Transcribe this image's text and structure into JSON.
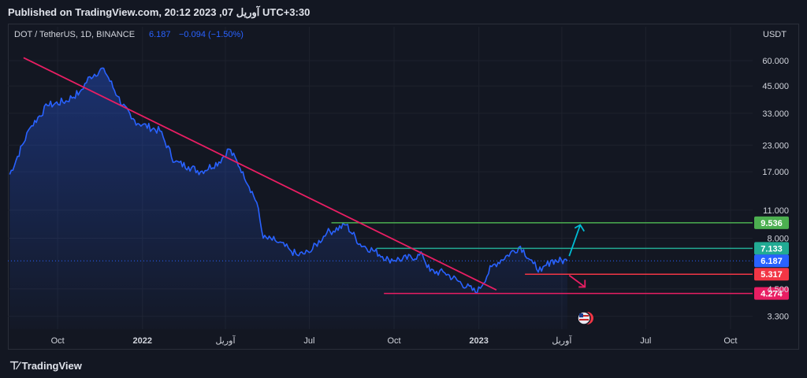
{
  "header": {
    "published": "Published on TradingView.com, 20:12 2023 ,07 آوریل UTC+3:30"
  },
  "footer": {
    "brand": "TradingView"
  },
  "chart_data": {
    "type": "line",
    "title": "DOT / TetherUS, 1D, BINANCE",
    "legend": {
      "last": "6.187",
      "change": "−0.094 (−1.50%)"
    },
    "currency": "USDT",
    "y_scale": "log",
    "y_ticks": [
      "60.000",
      "45.000",
      "33.000",
      "23.000",
      "17.000",
      "11.000",
      "8.000",
      "4.500",
      "3.300"
    ],
    "x_ticks": [
      "Oct",
      "2022",
      "آوریل",
      "Jul",
      "Oct",
      "2023",
      "آوریل",
      "Jul",
      "Oct"
    ],
    "x": [
      "2021-08-10",
      "2021-09-01",
      "2021-09-20",
      "2021-10-10",
      "2021-10-25",
      "2021-11-05",
      "2021-11-20",
      "2021-12-05",
      "2021-12-20",
      "2022-01-01",
      "2022-01-20",
      "2022-02-05",
      "2022-02-20",
      "2022-03-05",
      "2022-03-25",
      "2022-04-05",
      "2022-04-20",
      "2022-05-05",
      "2022-05-12",
      "2022-05-25",
      "2022-06-10",
      "2022-06-18",
      "2022-07-01",
      "2022-07-20",
      "2022-08-10",
      "2022-08-25",
      "2022-09-10",
      "2022-09-25",
      "2022-10-10",
      "2022-11-01",
      "2022-11-09",
      "2022-11-25",
      "2022-12-10",
      "2022-12-30",
      "2023-01-15",
      "2023-02-01",
      "2023-02-15",
      "2023-03-01",
      "2023-03-10",
      "2023-03-20",
      "2023-04-07"
    ],
    "series": [
      {
        "values": [
          16.5,
          28,
          36,
          38,
          42,
          50,
          55,
          40,
          31,
          29,
          27,
          19,
          18,
          17,
          19,
          22,
          17,
          12,
          8.0,
          7.8,
          7.0,
          6.6,
          6.8,
          8.5,
          9.3,
          7.5,
          6.9,
          6.3,
          6.3,
          6.6,
          5.5,
          5.4,
          4.9,
          4.3,
          5.8,
          6.6,
          7.3,
          6.0,
          5.5,
          6.2,
          6.187
        ]
      }
    ],
    "levels": [
      {
        "label": "9.536",
        "value": 9.536,
        "color": "#4caf50"
      },
      {
        "label": "7.133",
        "value": 7.133,
        "color": "#22ab94"
      },
      {
        "label": "6.187",
        "value": 6.187,
        "color": "#2962ff"
      },
      {
        "label": "5.317",
        "value": 5.317,
        "color": "#f23645"
      },
      {
        "label": "4.274",
        "value": 4.274,
        "color": "#e91e63"
      }
    ],
    "trendline": {
      "from": [
        "2021-08-25",
        62
      ],
      "to": [
        "2023-01-20",
        4.45
      ],
      "color": "#e91e63"
    },
    "colors": {
      "line": "#2962ff",
      "grid": "#1e222d",
      "text": "#b2b5be"
    }
  }
}
